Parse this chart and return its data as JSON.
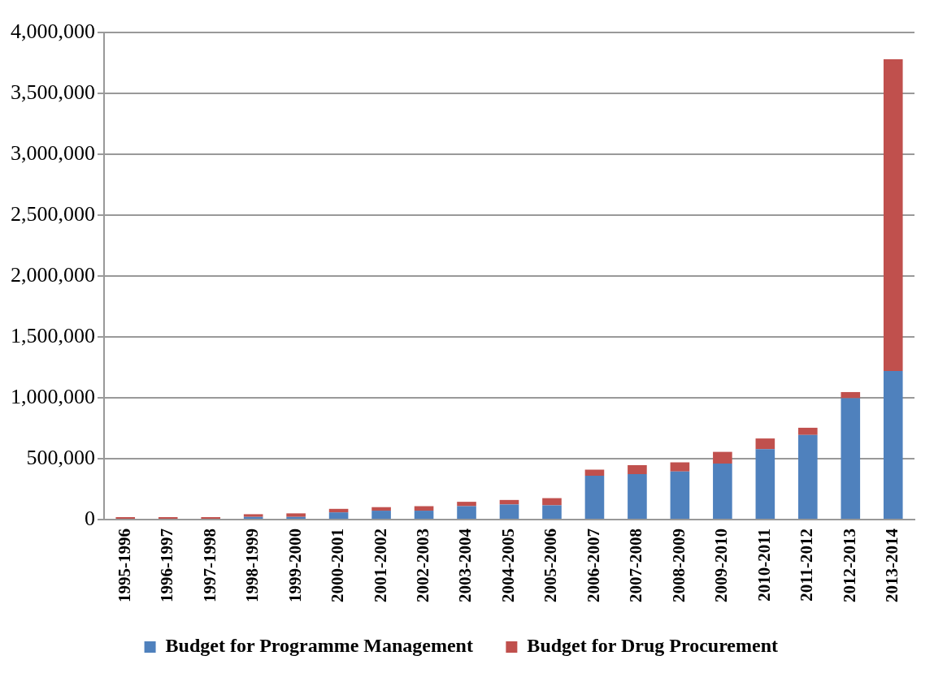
{
  "chart_data": {
    "type": "bar",
    "stacked": true,
    "categories": [
      "1995-1996",
      "1996-1997",
      "1997-1998",
      "1998-1999",
      "1999-2000",
      "2000-2001",
      "2001-2002",
      "2002-2003",
      "2003-2004",
      "2004-2005",
      "2005-2006",
      "2006-2007",
      "2007-2008",
      "2008-2009",
      "2009-2010",
      "2010-2011",
      "2011-2012",
      "2012-2013",
      "2013-2014"
    ],
    "series": [
      {
        "name": "Budget for Programme Management",
        "color": "#4f81bd",
        "values": [
          null,
          null,
          null,
          22000,
          22000,
          59000,
          73000,
          73000,
          110000,
          124000,
          117000,
          360000,
          373000,
          395000,
          460000,
          578000,
          695000,
          996000,
          1220000
        ]
      },
      {
        "name": "Budget for Drug Procurement",
        "color": "#c0504d",
        "values": [
          20000,
          20000,
          20000,
          22000,
          29000,
          29000,
          29000,
          37000,
          36000,
          37000,
          59000,
          50000,
          74000,
          75000,
          96000,
          88000,
          59000,
          51000,
          2560000
        ]
      }
    ],
    "ylim": [
      0,
      4000000
    ],
    "yticks": [
      {
        "value": 0,
        "label": "0"
      },
      {
        "value": 500000,
        "label": "500,000"
      },
      {
        "value": 1000000,
        "label": "1,000,000"
      },
      {
        "value": 1500000,
        "label": "1,500,000"
      },
      {
        "value": 2000000,
        "label": "2,000,000"
      },
      {
        "value": 2500000,
        "label": "2,500,000"
      },
      {
        "value": 3000000,
        "label": "3,000,000"
      },
      {
        "value": 3500000,
        "label": "3,500,000"
      },
      {
        "value": 4000000,
        "label": "4,000,000"
      }
    ],
    "grid": "y",
    "legend": "bottom"
  }
}
